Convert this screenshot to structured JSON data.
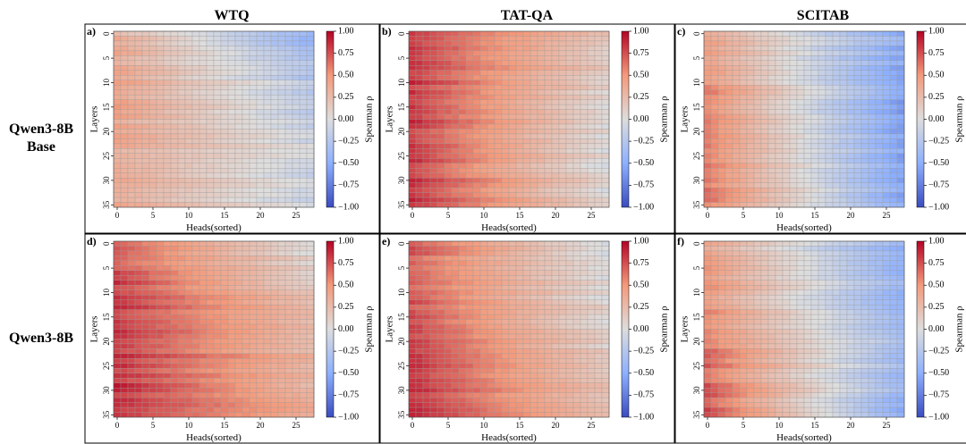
{
  "figure": {
    "columns": [
      "WTQ",
      "TAT-QA",
      "SCITAB"
    ],
    "rows": [
      {
        "lines": [
          "Qwen3-8B",
          "Base"
        ]
      },
      {
        "lines": [
          "Qwen3-8B"
        ]
      }
    ]
  },
  "chart_data": [
    {
      "type": "heatmap",
      "panel": "a)",
      "model": "Qwen3-8B Base",
      "dataset": "WTQ",
      "xlabel": "Heads(sorted)",
      "ylabel": "Layers",
      "colorbar_label": "Spearman ρ",
      "x_ticks": [
        0,
        5,
        10,
        15,
        20,
        25
      ],
      "y_ticks": [
        0,
        5,
        10,
        15,
        20,
        25,
        30,
        35
      ],
      "n_heads": 28,
      "n_layers": 36,
      "vmin": -1.0,
      "vmax": 1.0,
      "cbar_ticks": [
        "1.00",
        "0.75",
        "0.50",
        "0.25",
        "0.00",
        "−0.25",
        "−0.50",
        "−0.75",
        "−1.00"
      ],
      "row_profile": {
        "start": [
          0.3,
          0.45,
          0.35,
          0.35
        ],
        "end": [
          -0.4,
          -0.2,
          -0.05,
          -0.1
        ]
      }
    },
    {
      "type": "heatmap",
      "panel": "b)",
      "model": "Qwen3-8B Base",
      "dataset": "TAT-QA",
      "xlabel": "Heads(sorted)",
      "ylabel": "Layers",
      "colorbar_label": "Spearman ρ",
      "x_ticks": [
        0,
        5,
        10,
        15,
        20,
        25
      ],
      "y_ticks": [
        0,
        5,
        10,
        15,
        20,
        25,
        30,
        35
      ],
      "n_heads": 28,
      "n_layers": 36,
      "vmin": -1.0,
      "vmax": 1.0,
      "cbar_ticks": [
        "1.00",
        "0.75",
        "0.50",
        "0.25",
        "0.00",
        "−0.25",
        "−0.50",
        "−0.75",
        "−1.00"
      ],
      "row_profile": {
        "start": [
          0.85,
          0.85,
          0.8,
          0.9
        ],
        "end": [
          0.2,
          0.1,
          0.0,
          0.05
        ]
      }
    },
    {
      "type": "heatmap",
      "panel": "c)",
      "model": "Qwen3-8B Base",
      "dataset": "SCITAB",
      "xlabel": "Heads(sorted)",
      "ylabel": "Layers",
      "colorbar_label": "Spearman ρ",
      "x_ticks": [
        0,
        5,
        10,
        15,
        20,
        25
      ],
      "y_ticks": [
        0,
        5,
        10,
        15,
        20,
        25,
        30,
        35
      ],
      "n_heads": 28,
      "n_layers": 36,
      "vmin": -1.0,
      "vmax": 1.0,
      "cbar_ticks": [
        "1.00",
        "0.75",
        "0.50",
        "0.25",
        "0.00",
        "−0.25",
        "−0.50",
        "−0.75",
        "−1.00"
      ],
      "row_profile": {
        "start": [
          0.4,
          0.55,
          0.55,
          0.6
        ],
        "end": [
          -0.45,
          -0.55,
          -0.55,
          -0.5
        ]
      }
    },
    {
      "type": "heatmap",
      "panel": "d)",
      "model": "Qwen3-8B",
      "dataset": "WTQ",
      "xlabel": "Heads(sorted)",
      "ylabel": "Layers",
      "colorbar_label": "Spearman ρ",
      "x_ticks": [
        0,
        5,
        10,
        15,
        20,
        25
      ],
      "y_ticks": [
        0,
        5,
        10,
        15,
        20,
        25,
        30,
        35
      ],
      "n_heads": 28,
      "n_layers": 36,
      "vmin": -1.0,
      "vmax": 1.0,
      "cbar_ticks": [
        "1.00",
        "0.75",
        "0.50",
        "0.25",
        "0.00",
        "−0.25",
        "−0.50",
        "−0.75",
        "−1.00"
      ],
      "row_profile": {
        "start": [
          0.7,
          0.85,
          0.85,
          0.85
        ],
        "end": [
          0.05,
          0.2,
          0.3,
          0.35
        ]
      }
    },
    {
      "type": "heatmap",
      "panel": "e)",
      "model": "Qwen3-8B",
      "dataset": "TAT-QA",
      "xlabel": "Heads(sorted)",
      "ylabel": "Layers",
      "colorbar_label": "Spearman ρ",
      "x_ticks": [
        0,
        5,
        10,
        15,
        20,
        25
      ],
      "y_ticks": [
        0,
        5,
        10,
        15,
        20,
        25,
        30,
        35
      ],
      "n_heads": 28,
      "n_layers": 36,
      "vmin": -1.0,
      "vmax": 1.0,
      "cbar_ticks": [
        "1.00",
        "0.75",
        "0.50",
        "0.25",
        "0.00",
        "−0.25",
        "−0.50",
        "−0.75",
        "−1.00"
      ],
      "row_profile": {
        "start": [
          0.7,
          0.75,
          0.8,
          0.9
        ],
        "end": [
          -0.05,
          0.05,
          0.15,
          0.25
        ]
      }
    },
    {
      "type": "heatmap",
      "panel": "f)",
      "model": "Qwen3-8B",
      "dataset": "SCITAB",
      "xlabel": "Heads(sorted)",
      "ylabel": "Layers",
      "colorbar_label": "Spearman ρ",
      "x_ticks": [
        0,
        5,
        10,
        15,
        20,
        25
      ],
      "y_ticks": [
        0,
        5,
        10,
        15,
        20,
        25,
        30,
        35
      ],
      "n_heads": 28,
      "n_layers": 36,
      "vmin": -1.0,
      "vmax": 1.0,
      "cbar_ticks": [
        "1.00",
        "0.75",
        "0.50",
        "0.25",
        "0.00",
        "−0.25",
        "−0.50",
        "−0.75",
        "−1.00"
      ],
      "row_profile": {
        "start": [
          0.4,
          0.5,
          0.65,
          0.75
        ],
        "end": [
          -0.45,
          -0.4,
          -0.35,
          -0.45
        ]
      }
    }
  ]
}
